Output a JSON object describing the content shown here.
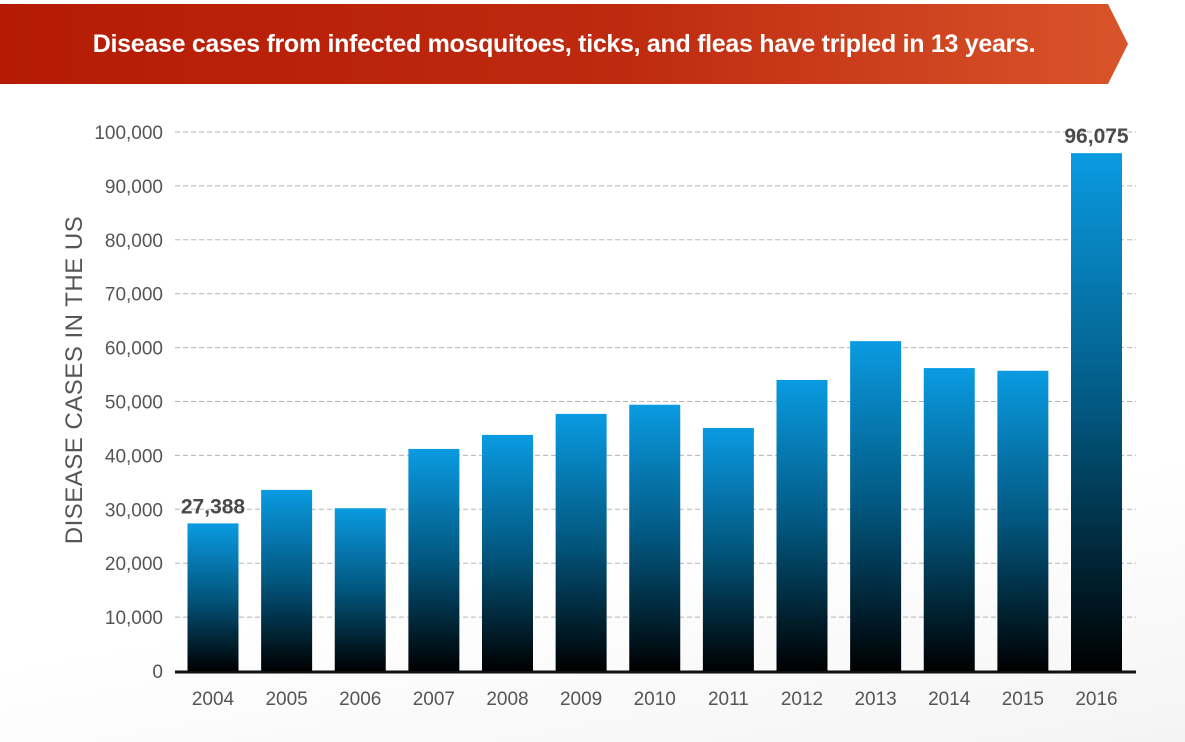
{
  "chart_data": {
    "type": "bar",
    "title": "Disease cases from infected mosquitoes, ticks, and fleas have tripled in 13 years.",
    "xlabel": "",
    "ylabel": "DISEASE CASES IN THE US",
    "categories": [
      "2004",
      "2005",
      "2006",
      "2007",
      "2008",
      "2009",
      "2010",
      "2011",
      "2012",
      "2013",
      "2014",
      "2015",
      "2016"
    ],
    "values": [
      27388,
      33600,
      30200,
      41200,
      43800,
      47700,
      49400,
      45100,
      54000,
      61200,
      56200,
      55700,
      96075
    ],
    "data_labels": [
      {
        "category": "2004",
        "text": "27,388"
      },
      {
        "category": "2016",
        "text": "96,075"
      }
    ],
    "ylim": [
      0,
      100000
    ],
    "yticks": [
      0,
      10000,
      20000,
      30000,
      40000,
      50000,
      60000,
      70000,
      80000,
      90000,
      100000
    ],
    "ytick_labels": [
      "0",
      "10,000",
      "20,000",
      "30,000",
      "40,000",
      "50,000",
      "60,000",
      "70,000",
      "80,000",
      "90,000",
      "100,000"
    ],
    "grid": "horizontal dashed",
    "colors": {
      "bar_top": "#0a9be2",
      "bar_bottom": "#000000",
      "banner_left": "#b51b04",
      "banner_right": "#d9542a",
      "grid": "#b5b5b5"
    }
  }
}
